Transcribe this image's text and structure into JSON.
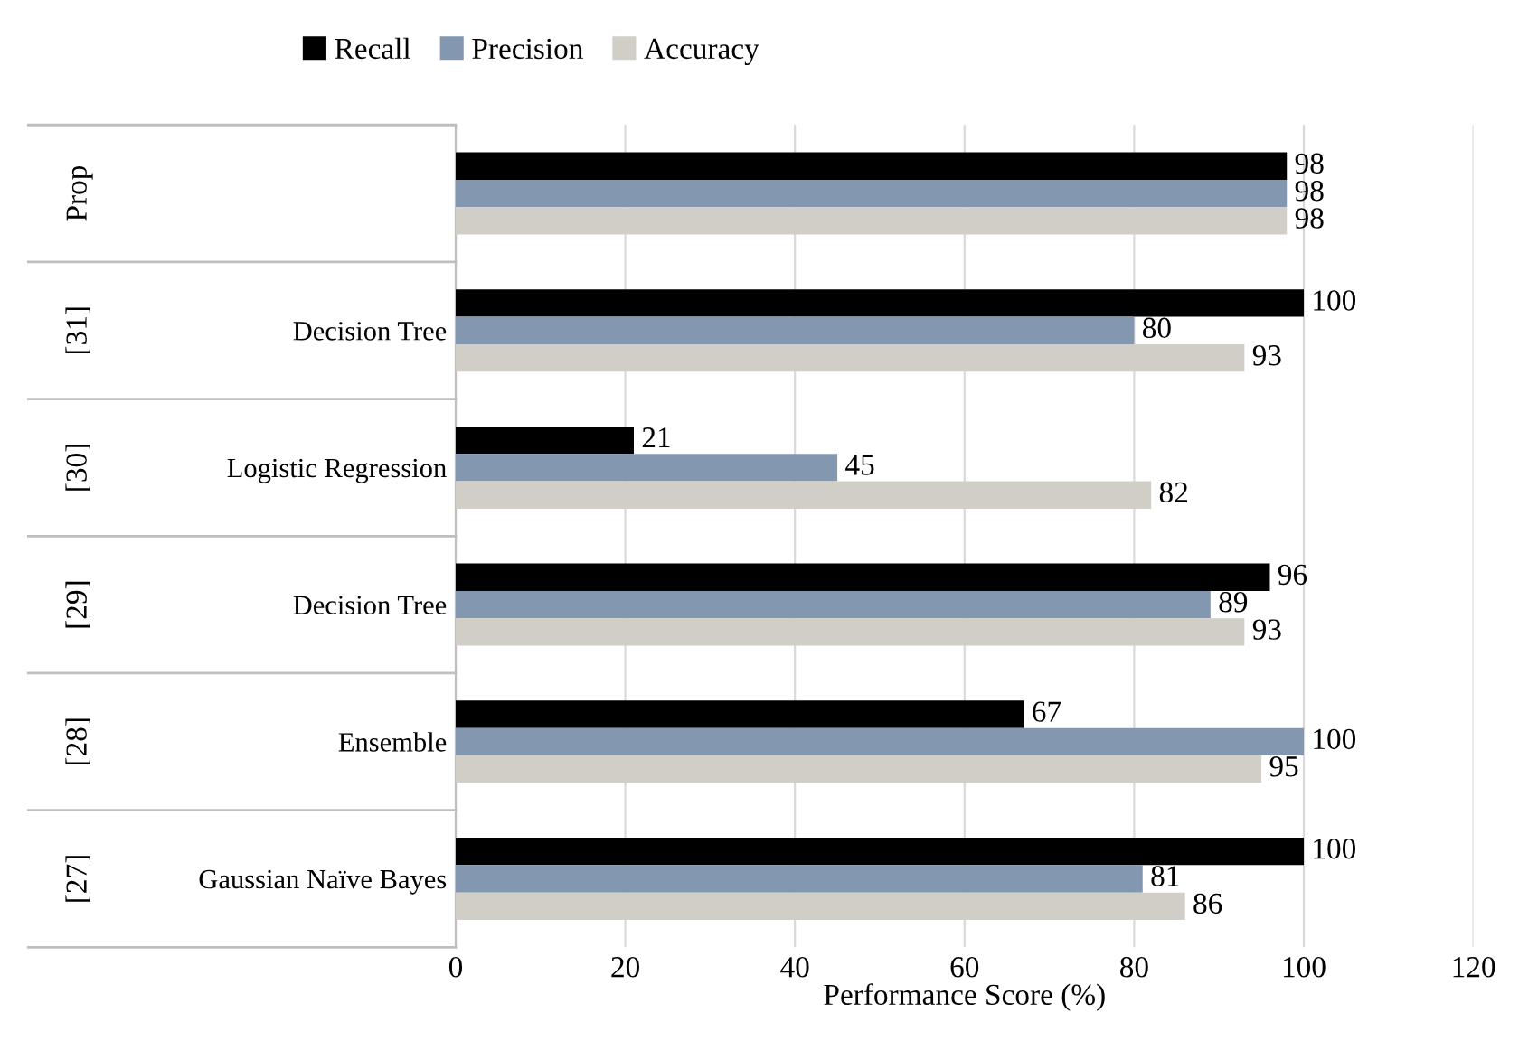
{
  "chart_data": {
    "type": "bar",
    "orientation": "horizontal",
    "xlabel": "Performance Score (%)",
    "categories": [
      null,
      "Decision Tree",
      "Logistic Regression",
      "Decision Tree",
      "Ensemble",
      "Gaussian Naïve Bayes"
    ],
    "annotations": [
      "Prop",
      "[31]",
      "[30]",
      "[29]",
      "[28]",
      "[27]"
    ],
    "series": [
      {
        "name": "Recall",
        "color": "#000000",
        "values": [
          98,
          100,
          21,
          96,
          67,
          100
        ]
      },
      {
        "name": "Precision",
        "color": "#8497b0",
        "values": [
          98,
          80,
          45,
          89,
          100,
          81
        ]
      },
      {
        "name": "Accuracy",
        "color": "#d0cec6",
        "values": [
          98,
          93,
          82,
          93,
          95,
          86
        ]
      }
    ],
    "xlim": [
      0,
      120
    ],
    "xticks": [
      0,
      20,
      40,
      60,
      80,
      100,
      120
    ],
    "grid": "x",
    "legend": "top",
    "data_labels": true
  }
}
